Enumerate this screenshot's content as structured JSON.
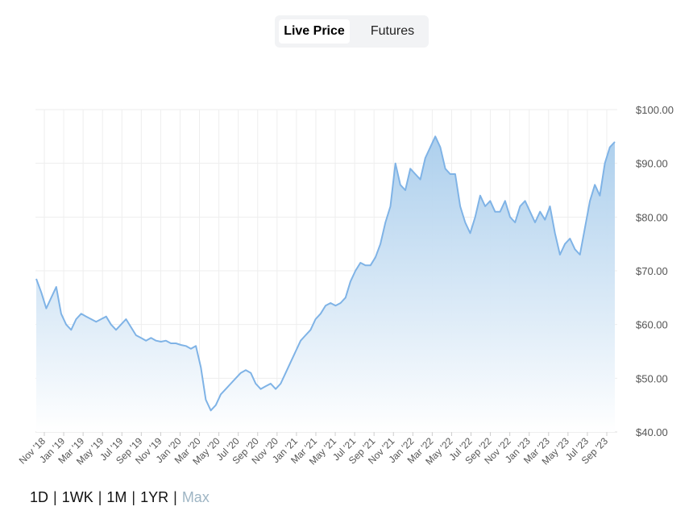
{
  "tabs": [
    {
      "label": "Live Price",
      "active": true
    },
    {
      "label": "Futures",
      "active": false
    }
  ],
  "ranges": [
    {
      "label": "1D",
      "selected": false
    },
    {
      "label": "1WK",
      "selected": false
    },
    {
      "label": "1M",
      "selected": false
    },
    {
      "label": "1YR",
      "selected": false
    },
    {
      "label": "Max",
      "selected": true
    }
  ],
  "colors": {
    "line": "#7fb3e6",
    "area_top": "#a9cdec",
    "area_bottom": "#ffffff",
    "grid": "#eeeeee",
    "axis_text": "#555555",
    "selected_range": "#9eb5c4"
  },
  "chart_data": {
    "type": "area",
    "title": "",
    "xlabel": "",
    "ylabel": "",
    "grid": true,
    "ylim": [
      40,
      100
    ],
    "y_ticks": [
      "$40.00",
      "$50.00",
      "$60.00",
      "$70.00",
      "$80.00",
      "$90.00",
      "$100.00"
    ],
    "x_ticks": [
      "Nov '18",
      "Jan '19",
      "Mar '19",
      "May '19",
      "Jul '19",
      "Sep '19",
      "Nov '19",
      "Jan '20",
      "Mar '20",
      "May '20",
      "Jul '20",
      "Sep '20",
      "Nov '20",
      "Jan '21",
      "Mar '21",
      "May '21",
      "Jul '21",
      "Sep '21",
      "Nov '21",
      "Jan '22",
      "Mar '22",
      "May '22",
      "Jul '22",
      "Sep '22",
      "Nov '22",
      "Jan '23",
      "Mar '23",
      "May '23",
      "Jul '23",
      "Sep '23"
    ],
    "series": [
      {
        "values": [
          68.5,
          66,
          63,
          65,
          67,
          62,
          60,
          59,
          61,
          62,
          61.5,
          61,
          60.5,
          61,
          61.5,
          60,
          59,
          60,
          61,
          59.5,
          58,
          57.5,
          57,
          57.5,
          57,
          56.8,
          57,
          56.5,
          56.5,
          56.2,
          56,
          55.5,
          56,
          52,
          46,
          44,
          45,
          47,
          48,
          49,
          50,
          51,
          51.5,
          51,
          49,
          48,
          48.5,
          49,
          48,
          49,
          51,
          53,
          55,
          57,
          58,
          59,
          61,
          62,
          63.5,
          64,
          63.5,
          64,
          65,
          68,
          70,
          71.5,
          71,
          71,
          72.5,
          75,
          79,
          82,
          90,
          86,
          85,
          89,
          88,
          87,
          91,
          93,
          95,
          93,
          89,
          88,
          88,
          82,
          79,
          77,
          80,
          84,
          82,
          83,
          81,
          81,
          83,
          80,
          79,
          82,
          83,
          81,
          79,
          81,
          79.5,
          82,
          77,
          73,
          75,
          76,
          74,
          73,
          78,
          83,
          86,
          84,
          90,
          93,
          94
        ]
      }
    ]
  }
}
